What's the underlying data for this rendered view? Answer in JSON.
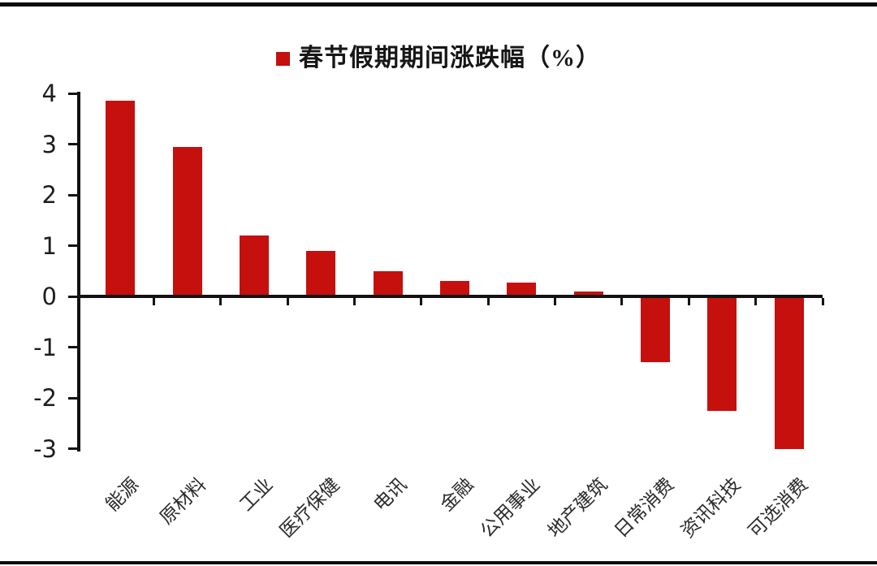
{
  "page": {
    "background": "#ffffff"
  },
  "decorations": {
    "top_rule_color": "#0b0b0b",
    "bottom_rule_color": "#0b0b0b"
  },
  "chart_data": {
    "type": "bar",
    "title": "春节假期期间涨跌幅（%）",
    "legend": [
      {
        "label": "春节假期期间涨跌幅（%）",
        "color": "#C5100D",
        "marker": "square"
      }
    ],
    "legend_position": "top-center",
    "categories": [
      "能源",
      "原材料",
      "工业",
      "医疗保健",
      "电讯",
      "金融",
      "公用事业",
      "地产建筑",
      "日常消费",
      "资讯科技",
      "可选消费"
    ],
    "values": [
      3.85,
      2.95,
      1.2,
      0.9,
      0.5,
      0.3,
      0.28,
      0.1,
      -1.3,
      -2.25,
      -3.0
    ],
    "xlabel": "",
    "ylabel": "",
    "ylim": [
      -3,
      4
    ],
    "yticks": [
      4,
      3,
      2,
      1,
      0,
      -1,
      -2,
      -3
    ],
    "grid": false,
    "bar_color": "#C5100D",
    "axis_color": "#121212"
  }
}
